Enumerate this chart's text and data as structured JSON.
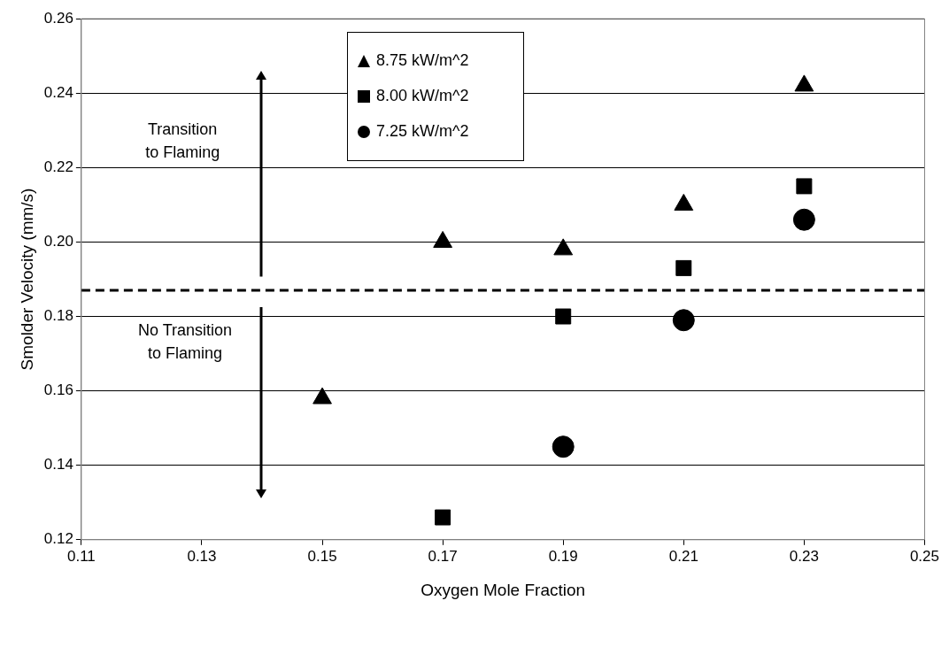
{
  "chart_data": {
    "type": "scatter",
    "xlabel": "Oxygen Mole Fraction",
    "ylabel": "Smolder Velocity (mm/s)",
    "xlim": [
      0.11,
      0.25
    ],
    "xticks": [
      0.11,
      0.13,
      0.15,
      0.17,
      0.19,
      0.21,
      0.23,
      0.25
    ],
    "ylim": [
      0.12,
      0.26
    ],
    "yticks": [
      0.12,
      0.14,
      0.16,
      0.18,
      {
        "value": 0.2,
        "label": "0.20"
      },
      0.22,
      0.24,
      0.26
    ],
    "grid": "y",
    "legend": "top",
    "series": [
      {
        "name": "8.75 kW/m^2",
        "color": "#000000",
        "marker": "triangle",
        "x": [
          0.15,
          0.17,
          0.19,
          0.21,
          0.23
        ],
        "values": [
          0.158,
          0.2,
          0.198,
          0.21,
          0.242
        ]
      },
      {
        "name": "8.00 kW/m^2",
        "color": "#000000",
        "marker": "square",
        "x": [
          0.17,
          0.19,
          0.21,
          0.23
        ],
        "values": [
          0.126,
          0.18,
          0.193,
          0.215
        ]
      },
      {
        "name": "7.25 kW/m^2",
        "color": "#000000",
        "marker": "circle",
        "x": [
          0.19,
          0.21,
          0.23
        ],
        "values": [
          0.145,
          0.179,
          0.206
        ]
      }
    ],
    "ref_lines": [
      {
        "axis": "y",
        "value": 0.187,
        "color": "#000000",
        "line_style": "dashed"
      }
    ],
    "annotations": [
      "Transition\nto Flaming",
      "No Transition\nto Flaming"
    ]
  }
}
